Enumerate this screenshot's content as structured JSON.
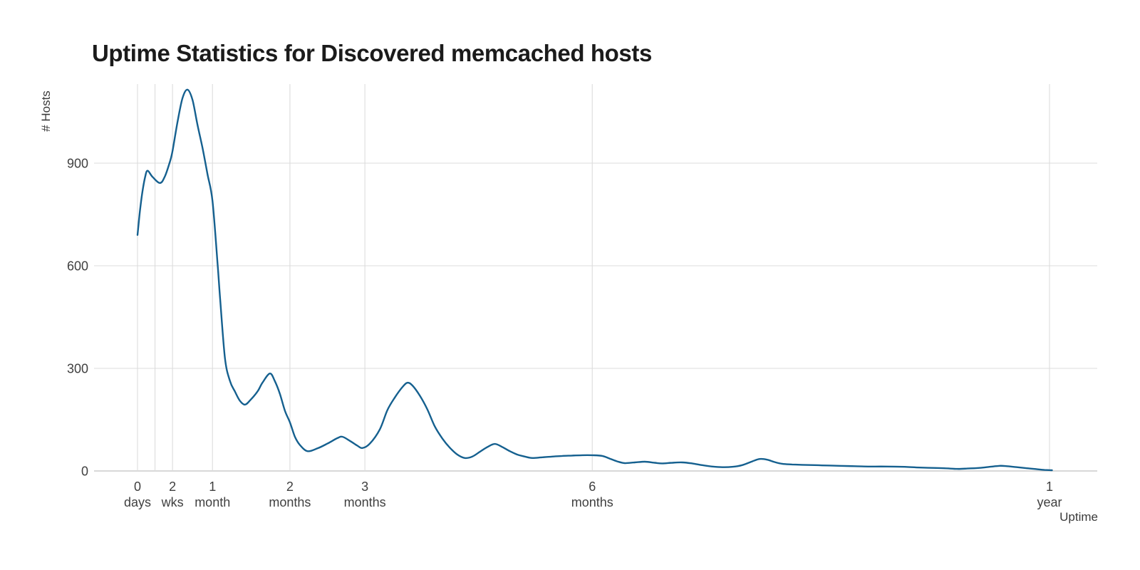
{
  "title": "Uptime Statistics for Discovered memcached hosts",
  "chart_data": {
    "type": "line",
    "title": "Uptime Statistics for Discovered memcached hosts",
    "xlabel": "Uptime",
    "ylabel": "# Hosts",
    "x_axis_note": "linear scale in days, irregular labeled ticks",
    "xlim_days": [
      0,
      384
    ],
    "ylim": [
      0,
      1130
    ],
    "grid": true,
    "legend": "none",
    "line_color": "#15608f",
    "grid_color": "#dcdcdc",
    "zero_line_color": "#cccccc",
    "tick_label_color": "#404040",
    "title_color": "#1b1b1b",
    "y_ticks": [
      {
        "value": 0,
        "label": "0"
      },
      {
        "value": 300,
        "label": "300"
      },
      {
        "value": 600,
        "label": "600"
      },
      {
        "value": 900,
        "label": "900"
      }
    ],
    "x_ticks": [
      {
        "days": 0,
        "line1": "0",
        "line2": "days"
      },
      {
        "days": 7,
        "line1": "",
        "line2": ""
      },
      {
        "days": 14,
        "line1": "2",
        "line2": "wks"
      },
      {
        "days": 30,
        "line1": "1",
        "line2": "month"
      },
      {
        "days": 61,
        "line1": "2",
        "line2": "months"
      },
      {
        "days": 91,
        "line1": "3",
        "line2": "months"
      },
      {
        "days": 182,
        "line1": "6",
        "line2": "months"
      },
      {
        "days": 365,
        "line1": "1",
        "line2": "year"
      }
    ],
    "series": [
      {
        "name": "# Hosts",
        "x_unit": "days of uptime",
        "points": [
          [
            0,
            690
          ],
          [
            1,
            762
          ],
          [
            2,
            818
          ],
          [
            3,
            858
          ],
          [
            4,
            878
          ],
          [
            6,
            860
          ],
          [
            9,
            842
          ],
          [
            11,
            862
          ],
          [
            13,
            905
          ],
          [
            14,
            935
          ],
          [
            16,
            1020
          ],
          [
            18,
            1090
          ],
          [
            20,
            1115
          ],
          [
            22,
            1085
          ],
          [
            24,
            1012
          ],
          [
            26,
            945
          ],
          [
            28,
            868
          ],
          [
            30,
            790
          ],
          [
            32,
            610
          ],
          [
            33,
            510
          ],
          [
            35,
            330
          ],
          [
            37,
            263
          ],
          [
            39,
            232
          ],
          [
            41,
            205
          ],
          [
            43,
            194
          ],
          [
            45,
            206
          ],
          [
            48,
            232
          ],
          [
            50,
            258
          ],
          [
            53,
            285
          ],
          [
            55,
            262
          ],
          [
            57,
            225
          ],
          [
            59,
            176
          ],
          [
            61,
            142
          ],
          [
            63,
            100
          ],
          [
            65,
            76
          ],
          [
            68,
            58
          ],
          [
            72,
            66
          ],
          [
            76,
            80
          ],
          [
            80,
            96
          ],
          [
            82,
            100
          ],
          [
            85,
            88
          ],
          [
            88,
            74
          ],
          [
            90,
            67
          ],
          [
            93,
            80
          ],
          [
            97,
            122
          ],
          [
            100,
            178
          ],
          [
            103,
            215
          ],
          [
            106,
            245
          ],
          [
            108,
            258
          ],
          [
            110,
            250
          ],
          [
            113,
            220
          ],
          [
            116,
            180
          ],
          [
            119,
            130
          ],
          [
            122,
            95
          ],
          [
            125,
            68
          ],
          [
            128,
            48
          ],
          [
            131,
            38
          ],
          [
            134,
            42
          ],
          [
            137,
            56
          ],
          [
            140,
            70
          ],
          [
            143,
            79
          ],
          [
            146,
            70
          ],
          [
            149,
            58
          ],
          [
            152,
            48
          ],
          [
            155,
            42
          ],
          [
            158,
            38
          ],
          [
            162,
            40
          ],
          [
            166,
            42
          ],
          [
            170,
            44
          ],
          [
            174,
            45
          ],
          [
            178,
            46
          ],
          [
            182,
            46
          ],
          [
            186,
            44
          ],
          [
            189,
            36
          ],
          [
            192,
            28
          ],
          [
            195,
            23
          ],
          [
            199,
            25
          ],
          [
            203,
            27
          ],
          [
            207,
            24
          ],
          [
            210,
            22
          ],
          [
            214,
            24
          ],
          [
            218,
            25
          ],
          [
            222,
            22
          ],
          [
            226,
            17
          ],
          [
            230,
            13
          ],
          [
            234,
            11
          ],
          [
            238,
            12
          ],
          [
            242,
            17
          ],
          [
            246,
            28
          ],
          [
            249,
            35
          ],
          [
            252,
            33
          ],
          [
            255,
            26
          ],
          [
            258,
            21
          ],
          [
            262,
            19
          ],
          [
            266,
            18
          ],
          [
            271,
            17
          ],
          [
            276,
            16
          ],
          [
            281,
            15
          ],
          [
            287,
            14
          ],
          [
            293,
            13
          ],
          [
            300,
            13
          ],
          [
            307,
            12
          ],
          [
            313,
            10
          ],
          [
            318,
            9
          ],
          [
            323,
            8
          ],
          [
            328,
            6
          ],
          [
            332,
            7
          ],
          [
            337,
            9
          ],
          [
            341,
            12
          ],
          [
            345,
            15
          ],
          [
            348,
            14
          ],
          [
            352,
            11
          ],
          [
            356,
            8
          ],
          [
            360,
            5
          ],
          [
            363,
            3
          ],
          [
            366,
            2
          ]
        ]
      }
    ]
  }
}
